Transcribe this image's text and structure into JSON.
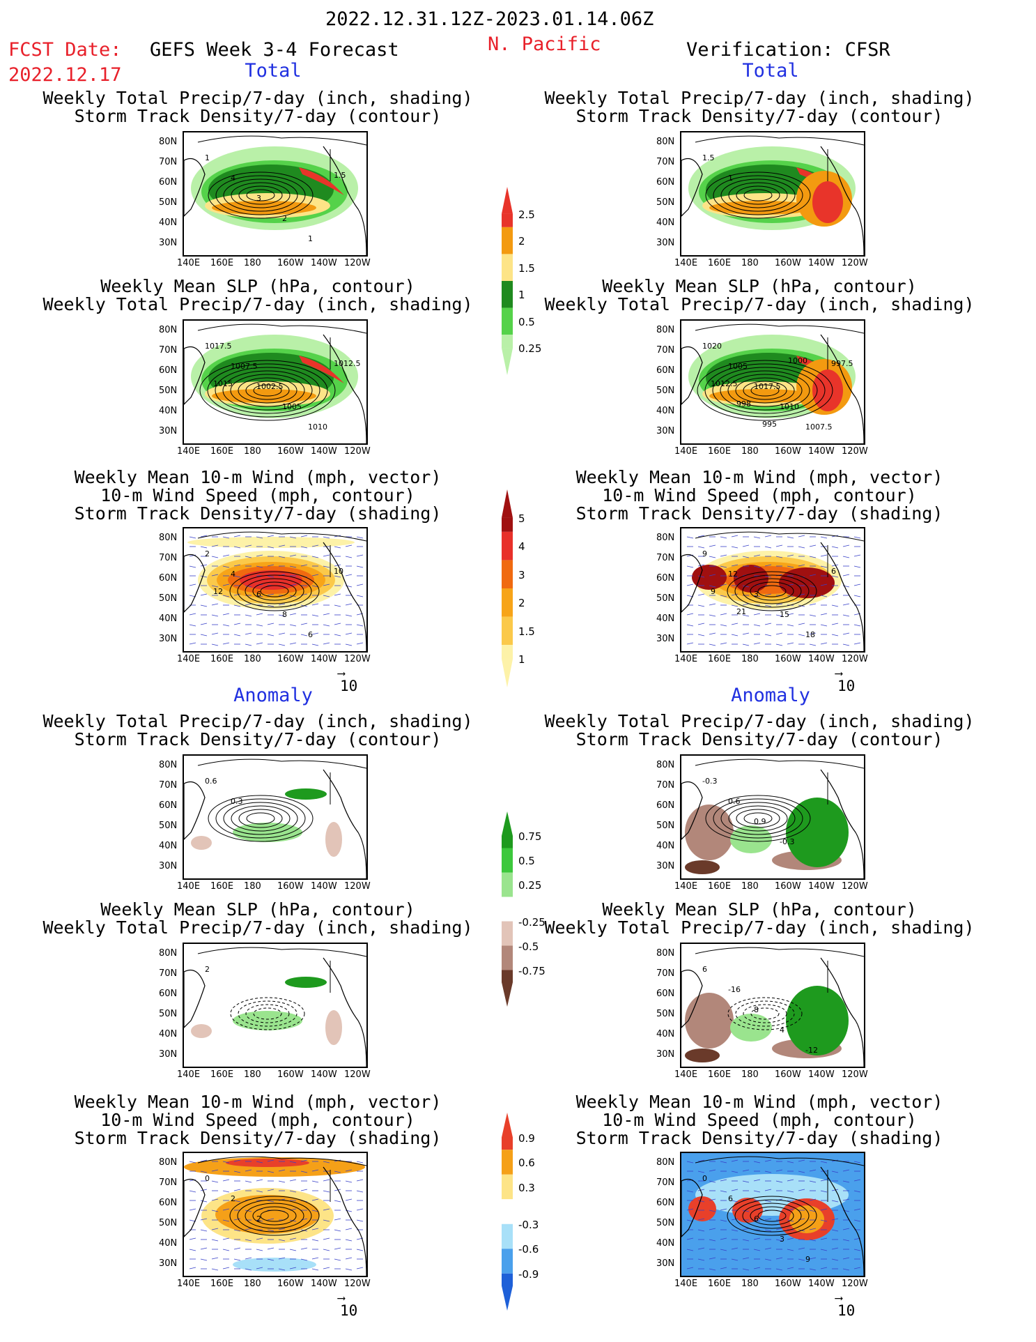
{
  "header": {
    "date_range": "2022.12.31.12Z-2023.01.14.06Z",
    "fcst_label": "FCST Date:",
    "fcst_date": "2022.12.17",
    "model": "GEFS Week 3-4 Forecast",
    "region": "N. Pacific",
    "verification": "Verification: CFSR"
  },
  "sections": {
    "total": "Total",
    "anomaly": "Anomaly"
  },
  "panel_titles": {
    "precip_track": [
      "Weekly Total Precip/7-day (inch, shading)",
      "Storm Track Density/7-day (contour)"
    ],
    "slp_precip": [
      "Weekly Mean SLP (hPa, contour)",
      "Weekly Total Precip/7-day (inch, shading)"
    ],
    "wind": [
      "Weekly Mean 10-m Wind (mph, vector)",
      "10-m Wind Speed (mph, contour)",
      "Storm Track Density/7-day (shading)"
    ]
  },
  "axes": {
    "lat_labels": [
      "80N",
      "70N",
      "60N",
      "50N",
      "40N",
      "30N"
    ],
    "lon_labels": [
      "140E",
      "160E",
      "180",
      "160W",
      "140W",
      "120W"
    ]
  },
  "vector_ref": "10",
  "map_labels": {
    "fc_total_precip": [
      "1",
      "4",
      "3",
      "2",
      "1",
      "1.5"
    ],
    "obs_total_precip": [
      "1.5",
      "1"
    ],
    "fc_total_slp": [
      "1017.5",
      "1007.5",
      "1002.5",
      "1005",
      "1010",
      "1012.5",
      "1015"
    ],
    "obs_total_slp": [
      "1020",
      "1005",
      "1017.5",
      "1010",
      "1007.5",
      "997.5",
      "1012.5",
      "998",
      "995",
      "1000"
    ],
    "fc_total_wind": [
      "2",
      "4",
      "6",
      "8",
      "6",
      "10",
      "12"
    ],
    "obs_total_wind": [
      "9",
      "12",
      "3",
      "15",
      "18",
      "6",
      "9",
      "21"
    ],
    "fc_anom_precip": [
      "0.6",
      "0.3"
    ],
    "obs_anom_precip": [
      "-0.3",
      "0.6",
      "0.9",
      "-0.3"
    ],
    "fc_anom_slp": [
      "2"
    ],
    "obs_anom_slp": [
      "6",
      "-16",
      "8",
      "4",
      "-12"
    ],
    "fc_anom_wind": [
      "0",
      "2",
      "2"
    ],
    "obs_anom_wind": [
      "0",
      "6",
      "6",
      "3",
      "9"
    ]
  },
  "colorbars": {
    "precip_total": {
      "labels": [
        "2.5",
        "2",
        "1.5",
        "1",
        "0.5",
        "0.25"
      ],
      "colors": [
        "#e8342a",
        "#f39a10",
        "#fde487",
        "#1f8a1f",
        "#55d24a",
        "#b9f0a8"
      ]
    },
    "track_total": {
      "labels": [
        "5",
        "4",
        "3",
        "2",
        "1.5",
        "1"
      ],
      "colors": [
        "#a01010",
        "#e8302a",
        "#f06a10",
        "#f7a418",
        "#fbc94a",
        "#fdf2a8"
      ]
    },
    "precip_anom": {
      "labels": [
        "0.75",
        "0.5",
        "0.25",
        "-0.25",
        "-0.5",
        "-0.75"
      ],
      "colors": [
        "#1e9a1e",
        "#3cc83c",
        "#9ae48e",
        "#ffffff",
        "#e2c4b8",
        "#b2877a",
        "#6a3a2a"
      ]
    },
    "track_anom": {
      "labels": [
        "0.9",
        "0.6",
        "0.3",
        "-0.3",
        "-0.6",
        "-0.9"
      ],
      "colors": [
        "#e8402a",
        "#f5a018",
        "#fde487",
        "#ffffff",
        "#a8e0f8",
        "#4aa0ec",
        "#1e60d8"
      ]
    }
  }
}
